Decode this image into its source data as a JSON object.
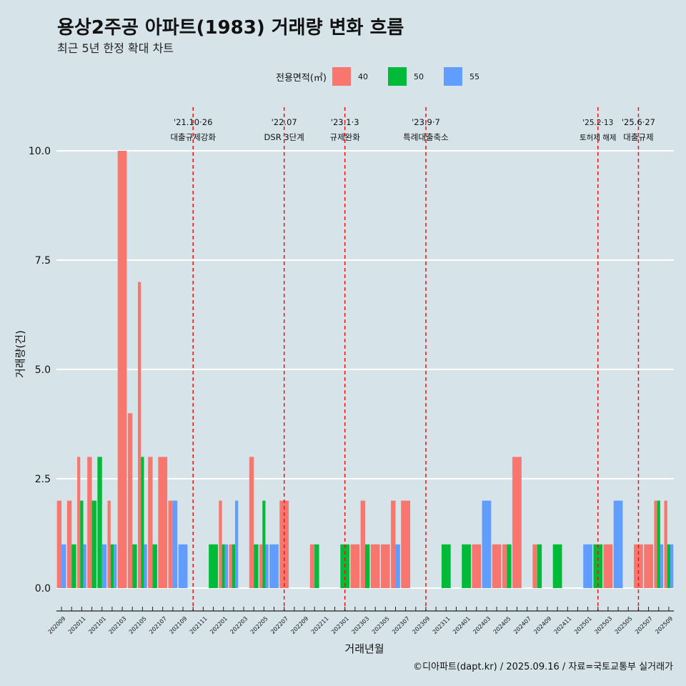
{
  "header": {
    "title": "용상2주공 아파트(1983) 거래량 변화 흐름",
    "subtitle": "최근 5년 한정 확대 차트"
  },
  "legend": {
    "title": "전용면적(㎡)",
    "items": [
      {
        "label": "40",
        "color": "#f8766d"
      },
      {
        "label": "50",
        "color": "#00ba38"
      },
      {
        "label": "55",
        "color": "#619cff"
      }
    ]
  },
  "caption": "©디아파트(dapt.kr) / 2025.09.16 / 자료=국토교통부 실거래가",
  "chart_data": {
    "type": "bar",
    "xlabel": "거래년월",
    "ylabel": "거래량(건)",
    "ylim": [
      0,
      10
    ],
    "yticks": [
      "0.0",
      "2.5",
      "5.0",
      "7.5",
      "10.0"
    ],
    "grid": true,
    "legend_position": "top",
    "categories": [
      "202009",
      "202010",
      "202011",
      "202012",
      "202101",
      "202102",
      "202103",
      "202104",
      "202105",
      "202106",
      "202107",
      "202108",
      "202109",
      "202110",
      "202111",
      "202112",
      "202201",
      "202202",
      "202203",
      "202204",
      "202205",
      "202206",
      "202207",
      "202208",
      "202209",
      "202210",
      "202211",
      "202212",
      "202301",
      "202302",
      "202303",
      "202304",
      "202305",
      "202306",
      "202307",
      "202308",
      "202309",
      "202310",
      "202311",
      "202312",
      "202401",
      "202402",
      "202403",
      "202404",
      "202405",
      "202406",
      "202407",
      "202408",
      "202409",
      "202410",
      "202411",
      "202412",
      "202501",
      "202502",
      "202503",
      "202504",
      "202505",
      "202506",
      "202507",
      "202508",
      "202509"
    ],
    "series": [
      {
        "name": "40",
        "values": [
          2,
          2,
          3,
          3,
          0,
          2,
          10,
          4,
          7,
          3,
          3,
          2,
          0,
          0,
          0,
          0,
          2,
          1,
          0,
          3,
          1,
          0,
          2,
          0,
          0,
          1,
          0,
          0,
          0,
          1,
          2,
          1,
          1,
          2,
          2,
          0,
          0,
          0,
          0,
          0,
          0,
          1,
          0,
          1,
          1,
          3,
          0,
          1,
          0,
          0,
          0,
          0,
          0,
          0,
          1,
          0,
          0,
          1,
          1,
          2,
          2
        ]
      },
      {
        "name": "50",
        "values": [
          0,
          1,
          2,
          2,
          3,
          1,
          0,
          1,
          3,
          1,
          0,
          0,
          0,
          0,
          0,
          1,
          1,
          1,
          0,
          1,
          2,
          0,
          0,
          0,
          0,
          1,
          0,
          0,
          1,
          0,
          1,
          0,
          0,
          0,
          0,
          0,
          0,
          0,
          1,
          0,
          1,
          0,
          0,
          0,
          1,
          0,
          0,
          1,
          0,
          1,
          0,
          0,
          0,
          1,
          0,
          0,
          0,
          0,
          0,
          2,
          1
        ]
      },
      {
        "name": "55",
        "values": [
          1,
          0,
          1,
          0,
          1,
          1,
          0,
          0,
          1,
          0,
          0,
          2,
          1,
          0,
          0,
          0,
          1,
          2,
          0,
          0,
          1,
          1,
          0,
          0,
          0,
          0,
          0,
          0,
          0,
          0,
          0,
          0,
          0,
          1,
          0,
          0,
          0,
          0,
          0,
          0,
          0,
          0,
          2,
          0,
          0,
          0,
          0,
          0,
          0,
          0,
          0,
          0,
          1,
          0,
          0,
          2,
          0,
          0,
          0,
          1,
          1
        ]
      }
    ],
    "annotations": [
      {
        "month": "202110",
        "date": "'21.10·26",
        "label": "대출규제강화"
      },
      {
        "month": "202207",
        "date": "'22.07",
        "label": "DSR 3단계"
      },
      {
        "month": "202301",
        "date": "'23.1·3",
        "label": "규제완화"
      },
      {
        "month": "202309",
        "date": "'23.9·7",
        "label": "특례대출축소"
      },
      {
        "month": "202502",
        "date": "'25.2·13",
        "label": "토허제 해제"
      },
      {
        "month": "202506",
        "date": "'25.6·27",
        "label": "대출규제"
      }
    ]
  }
}
